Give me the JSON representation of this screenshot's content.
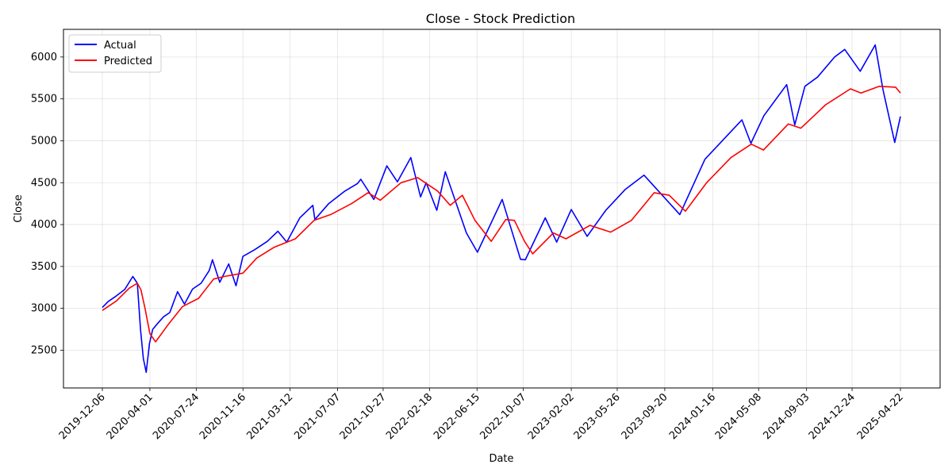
{
  "chart_data": {
    "type": "line",
    "title": "Close - Stock Prediction",
    "xlabel": "Date",
    "ylabel": "Close",
    "legend_position": "top-left",
    "grid": true,
    "x_range": [
      "2019-12-06",
      "2025-04-22"
    ],
    "ylim": [
      2050,
      6330
    ],
    "y_ticks": [
      2500,
      3000,
      3500,
      4000,
      4500,
      5000,
      5500,
      6000
    ],
    "x_ticks": [
      "2019-12-06",
      "2020-04-01",
      "2020-07-24",
      "2020-11-16",
      "2021-03-12",
      "2021-07-07",
      "2021-10-27",
      "2022-02-18",
      "2022-06-15",
      "2022-10-07",
      "2023-02-02",
      "2023-05-26",
      "2023-09-20",
      "2024-01-16",
      "2024-05-08",
      "2024-09-03",
      "2024-12-24",
      "2025-04-22"
    ],
    "series": [
      {
        "name": "Actual",
        "color": "#0000ff",
        "points": [
          [
            "2019-12-06",
            3010
          ],
          [
            "2019-12-20",
            3080
          ],
          [
            "2020-01-10",
            3150
          ],
          [
            "2020-01-30",
            3225
          ],
          [
            "2020-02-19",
            3380
          ],
          [
            "2020-03-01",
            3300
          ],
          [
            "2020-03-09",
            2750
          ],
          [
            "2020-03-16",
            2400
          ],
          [
            "2020-03-23",
            2237
          ],
          [
            "2020-03-31",
            2580
          ],
          [
            "2020-04-08",
            2750
          ],
          [
            "2020-04-20",
            2820
          ],
          [
            "2020-05-05",
            2900
          ],
          [
            "2020-05-20",
            2950
          ],
          [
            "2020-06-08",
            3200
          ],
          [
            "2020-06-25",
            3050
          ],
          [
            "2020-07-15",
            3230
          ],
          [
            "2020-08-05",
            3300
          ],
          [
            "2020-08-25",
            3450
          ],
          [
            "2020-09-02",
            3580
          ],
          [
            "2020-09-20",
            3310
          ],
          [
            "2020-10-12",
            3530
          ],
          [
            "2020-10-30",
            3270
          ],
          [
            "2020-11-16",
            3620
          ],
          [
            "2020-12-15",
            3700
          ],
          [
            "2021-01-15",
            3800
          ],
          [
            "2021-02-10",
            3920
          ],
          [
            "2021-03-04",
            3790
          ],
          [
            "2021-04-05",
            4080
          ],
          [
            "2021-05-07",
            4230
          ],
          [
            "2021-05-12",
            4060
          ],
          [
            "2021-06-15",
            4250
          ],
          [
            "2021-07-25",
            4400
          ],
          [
            "2021-08-25",
            4490
          ],
          [
            "2021-09-02",
            4540
          ],
          [
            "2021-10-04",
            4300
          ],
          [
            "2021-11-05",
            4700
          ],
          [
            "2021-12-01",
            4510
          ],
          [
            "2022-01-03",
            4800
          ],
          [
            "2022-01-27",
            4330
          ],
          [
            "2022-02-10",
            4500
          ],
          [
            "2022-03-08",
            4170
          ],
          [
            "2022-03-29",
            4630
          ],
          [
            "2022-05-20",
            3900
          ],
          [
            "2022-06-16",
            3670
          ],
          [
            "2022-08-16",
            4300
          ],
          [
            "2022-09-30",
            3585
          ],
          [
            "2022-10-12",
            3580
          ],
          [
            "2022-11-30",
            4080
          ],
          [
            "2022-12-28",
            3790
          ],
          [
            "2023-02-02",
            4180
          ],
          [
            "2023-03-13",
            3860
          ],
          [
            "2023-04-28",
            4170
          ],
          [
            "2023-06-15",
            4420
          ],
          [
            "2023-07-31",
            4590
          ],
          [
            "2023-10-27",
            4120
          ],
          [
            "2023-12-28",
            4780
          ],
          [
            "2024-03-28",
            5250
          ],
          [
            "2024-04-19",
            4970
          ],
          [
            "2024-05-21",
            5300
          ],
          [
            "2024-07-16",
            5670
          ],
          [
            "2024-08-05",
            5190
          ],
          [
            "2024-08-30",
            5650
          ],
          [
            "2024-09-30",
            5760
          ],
          [
            "2024-11-11",
            6000
          ],
          [
            "2024-12-06",
            6090
          ],
          [
            "2025-01-13",
            5830
          ],
          [
            "2025-02-19",
            6144
          ],
          [
            "2025-03-10",
            5610
          ],
          [
            "2025-04-08",
            4980
          ],
          [
            "2025-04-22",
            5290
          ]
        ]
      },
      {
        "name": "Predicted",
        "color": "#ff0000",
        "points": [
          [
            "2019-12-06",
            2975
          ],
          [
            "2020-01-10",
            3090
          ],
          [
            "2020-02-10",
            3240
          ],
          [
            "2020-03-01",
            3300
          ],
          [
            "2020-03-10",
            3220
          ],
          [
            "2020-03-20",
            3000
          ],
          [
            "2020-04-01",
            2700
          ],
          [
            "2020-04-15",
            2600
          ],
          [
            "2020-05-15",
            2800
          ],
          [
            "2020-06-20",
            3020
          ],
          [
            "2020-07-30",
            3120
          ],
          [
            "2020-09-05",
            3350
          ],
          [
            "2020-10-01",
            3380
          ],
          [
            "2020-11-16",
            3420
          ],
          [
            "2020-12-20",
            3600
          ],
          [
            "2021-02-01",
            3730
          ],
          [
            "2021-03-25",
            3830
          ],
          [
            "2021-05-10",
            4050
          ],
          [
            "2021-06-20",
            4120
          ],
          [
            "2021-08-10",
            4250
          ],
          [
            "2021-09-20",
            4380
          ],
          [
            "2021-10-20",
            4290
          ],
          [
            "2021-12-10",
            4500
          ],
          [
            "2022-01-20",
            4560
          ],
          [
            "2022-03-10",
            4400
          ],
          [
            "2022-04-10",
            4230
          ],
          [
            "2022-05-10",
            4350
          ],
          [
            "2022-06-10",
            4050
          ],
          [
            "2022-07-20",
            3800
          ],
          [
            "2022-08-25",
            4060
          ],
          [
            "2022-09-15",
            4050
          ],
          [
            "2022-10-10",
            3800
          ],
          [
            "2022-10-30",
            3650
          ],
          [
            "2022-12-20",
            3900
          ],
          [
            "2023-01-20",
            3830
          ],
          [
            "2023-03-20",
            3990
          ],
          [
            "2023-05-10",
            3910
          ],
          [
            "2023-06-30",
            4050
          ],
          [
            "2023-08-25",
            4380
          ],
          [
            "2023-10-01",
            4350
          ],
          [
            "2023-11-10",
            4160
          ],
          [
            "2024-01-01",
            4500
          ],
          [
            "2024-03-01",
            4800
          ],
          [
            "2024-04-20",
            4960
          ],
          [
            "2024-05-20",
            4890
          ],
          [
            "2024-07-20",
            5200
          ],
          [
            "2024-08-20",
            5150
          ],
          [
            "2024-10-20",
            5430
          ],
          [
            "2024-12-20",
            5620
          ],
          [
            "2025-01-15",
            5570
          ],
          [
            "2025-03-01",
            5650
          ],
          [
            "2025-04-10",
            5640
          ],
          [
            "2025-04-22",
            5570
          ]
        ]
      }
    ]
  }
}
